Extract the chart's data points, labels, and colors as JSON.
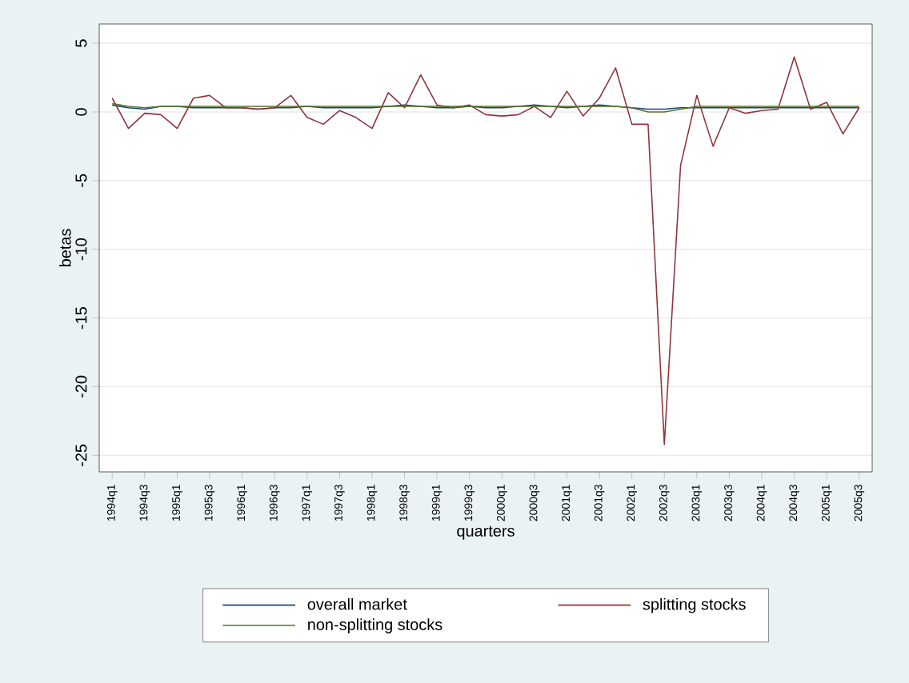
{
  "chart_data": {
    "type": "line",
    "xlabel": "quarters",
    "ylabel": "betas",
    "categories": [
      "1994q1",
      null,
      "1994q3",
      null,
      "1995q1",
      null,
      "1995q3",
      null,
      "1996q1",
      null,
      "1996q3",
      null,
      "1997q1",
      null,
      "1997q3",
      null,
      "1998q1",
      null,
      "1998q3",
      null,
      "1999q1",
      null,
      "1999q3",
      null,
      "2000q1",
      null,
      "2000q3",
      null,
      "2001q1",
      null,
      "2001q3",
      null,
      "2002q1",
      null,
      "2002q3",
      null,
      "2003q1",
      null,
      "2003q3",
      null,
      "2004q1",
      null,
      "2004q3",
      null,
      "2005q1",
      null,
      "2005q3"
    ],
    "series": [
      {
        "name": "overall market",
        "color": "#1a476f",
        "values": [
          0.5,
          0.3,
          0.2,
          0.4,
          0.4,
          0.3,
          0.3,
          0.3,
          0.3,
          0.2,
          0.3,
          0.3,
          0.4,
          0.3,
          0.3,
          0.3,
          0.3,
          0.4,
          0.5,
          0.4,
          0.3,
          0.3,
          0.4,
          0.3,
          0.3,
          0.4,
          0.5,
          0.4,
          0.3,
          0.4,
          0.5,
          0.4,
          0.3,
          0.2,
          0.2,
          0.3,
          0.3,
          0.3,
          0.3,
          0.3,
          0.3,
          0.3,
          0.3,
          0.3,
          0.3,
          0.3,
          0.3
        ]
      },
      {
        "name": "splitting stocks",
        "color": "#90353b",
        "values": [
          1.0,
          -1.2,
          -0.1,
          -0.2,
          -1.2,
          1.0,
          1.2,
          0.3,
          0.3,
          0.2,
          0.3,
          1.2,
          -0.4,
          -0.9,
          0.1,
          -0.4,
          -1.2,
          1.4,
          0.3,
          2.7,
          0.5,
          0.3,
          0.5,
          -0.2,
          -0.3,
          -0.2,
          0.4,
          -0.4,
          1.5,
          -0.3,
          1.0,
          3.2,
          -0.9,
          -0.9,
          -24.2,
          -3.9,
          1.2,
          -2.5,
          0.3,
          -0.1,
          0.1,
          0.2,
          4.0,
          0.2,
          0.7,
          -1.6,
          0.3
        ]
      },
      {
        "name": "non-splitting stocks",
        "color": "#55752f",
        "values": [
          0.6,
          0.4,
          0.3,
          0.4,
          0.4,
          0.4,
          0.4,
          0.4,
          0.4,
          0.4,
          0.4,
          0.4,
          0.4,
          0.4,
          0.4,
          0.4,
          0.4,
          0.4,
          0.4,
          0.4,
          0.4,
          0.4,
          0.4,
          0.4,
          0.4,
          0.4,
          0.4,
          0.4,
          0.4,
          0.4,
          0.4,
          0.4,
          0.3,
          0.0,
          0.0,
          0.2,
          0.4,
          0.4,
          0.4,
          0.4,
          0.4,
          0.4,
          0.4,
          0.4,
          0.4,
          0.4,
          0.4
        ]
      }
    ],
    "ylim": [
      -26.2,
      6.4
    ],
    "yticks": [
      -25,
      -20,
      -15,
      -10,
      -5,
      0,
      5
    ],
    "grid": "y",
    "legend": "bottom"
  }
}
